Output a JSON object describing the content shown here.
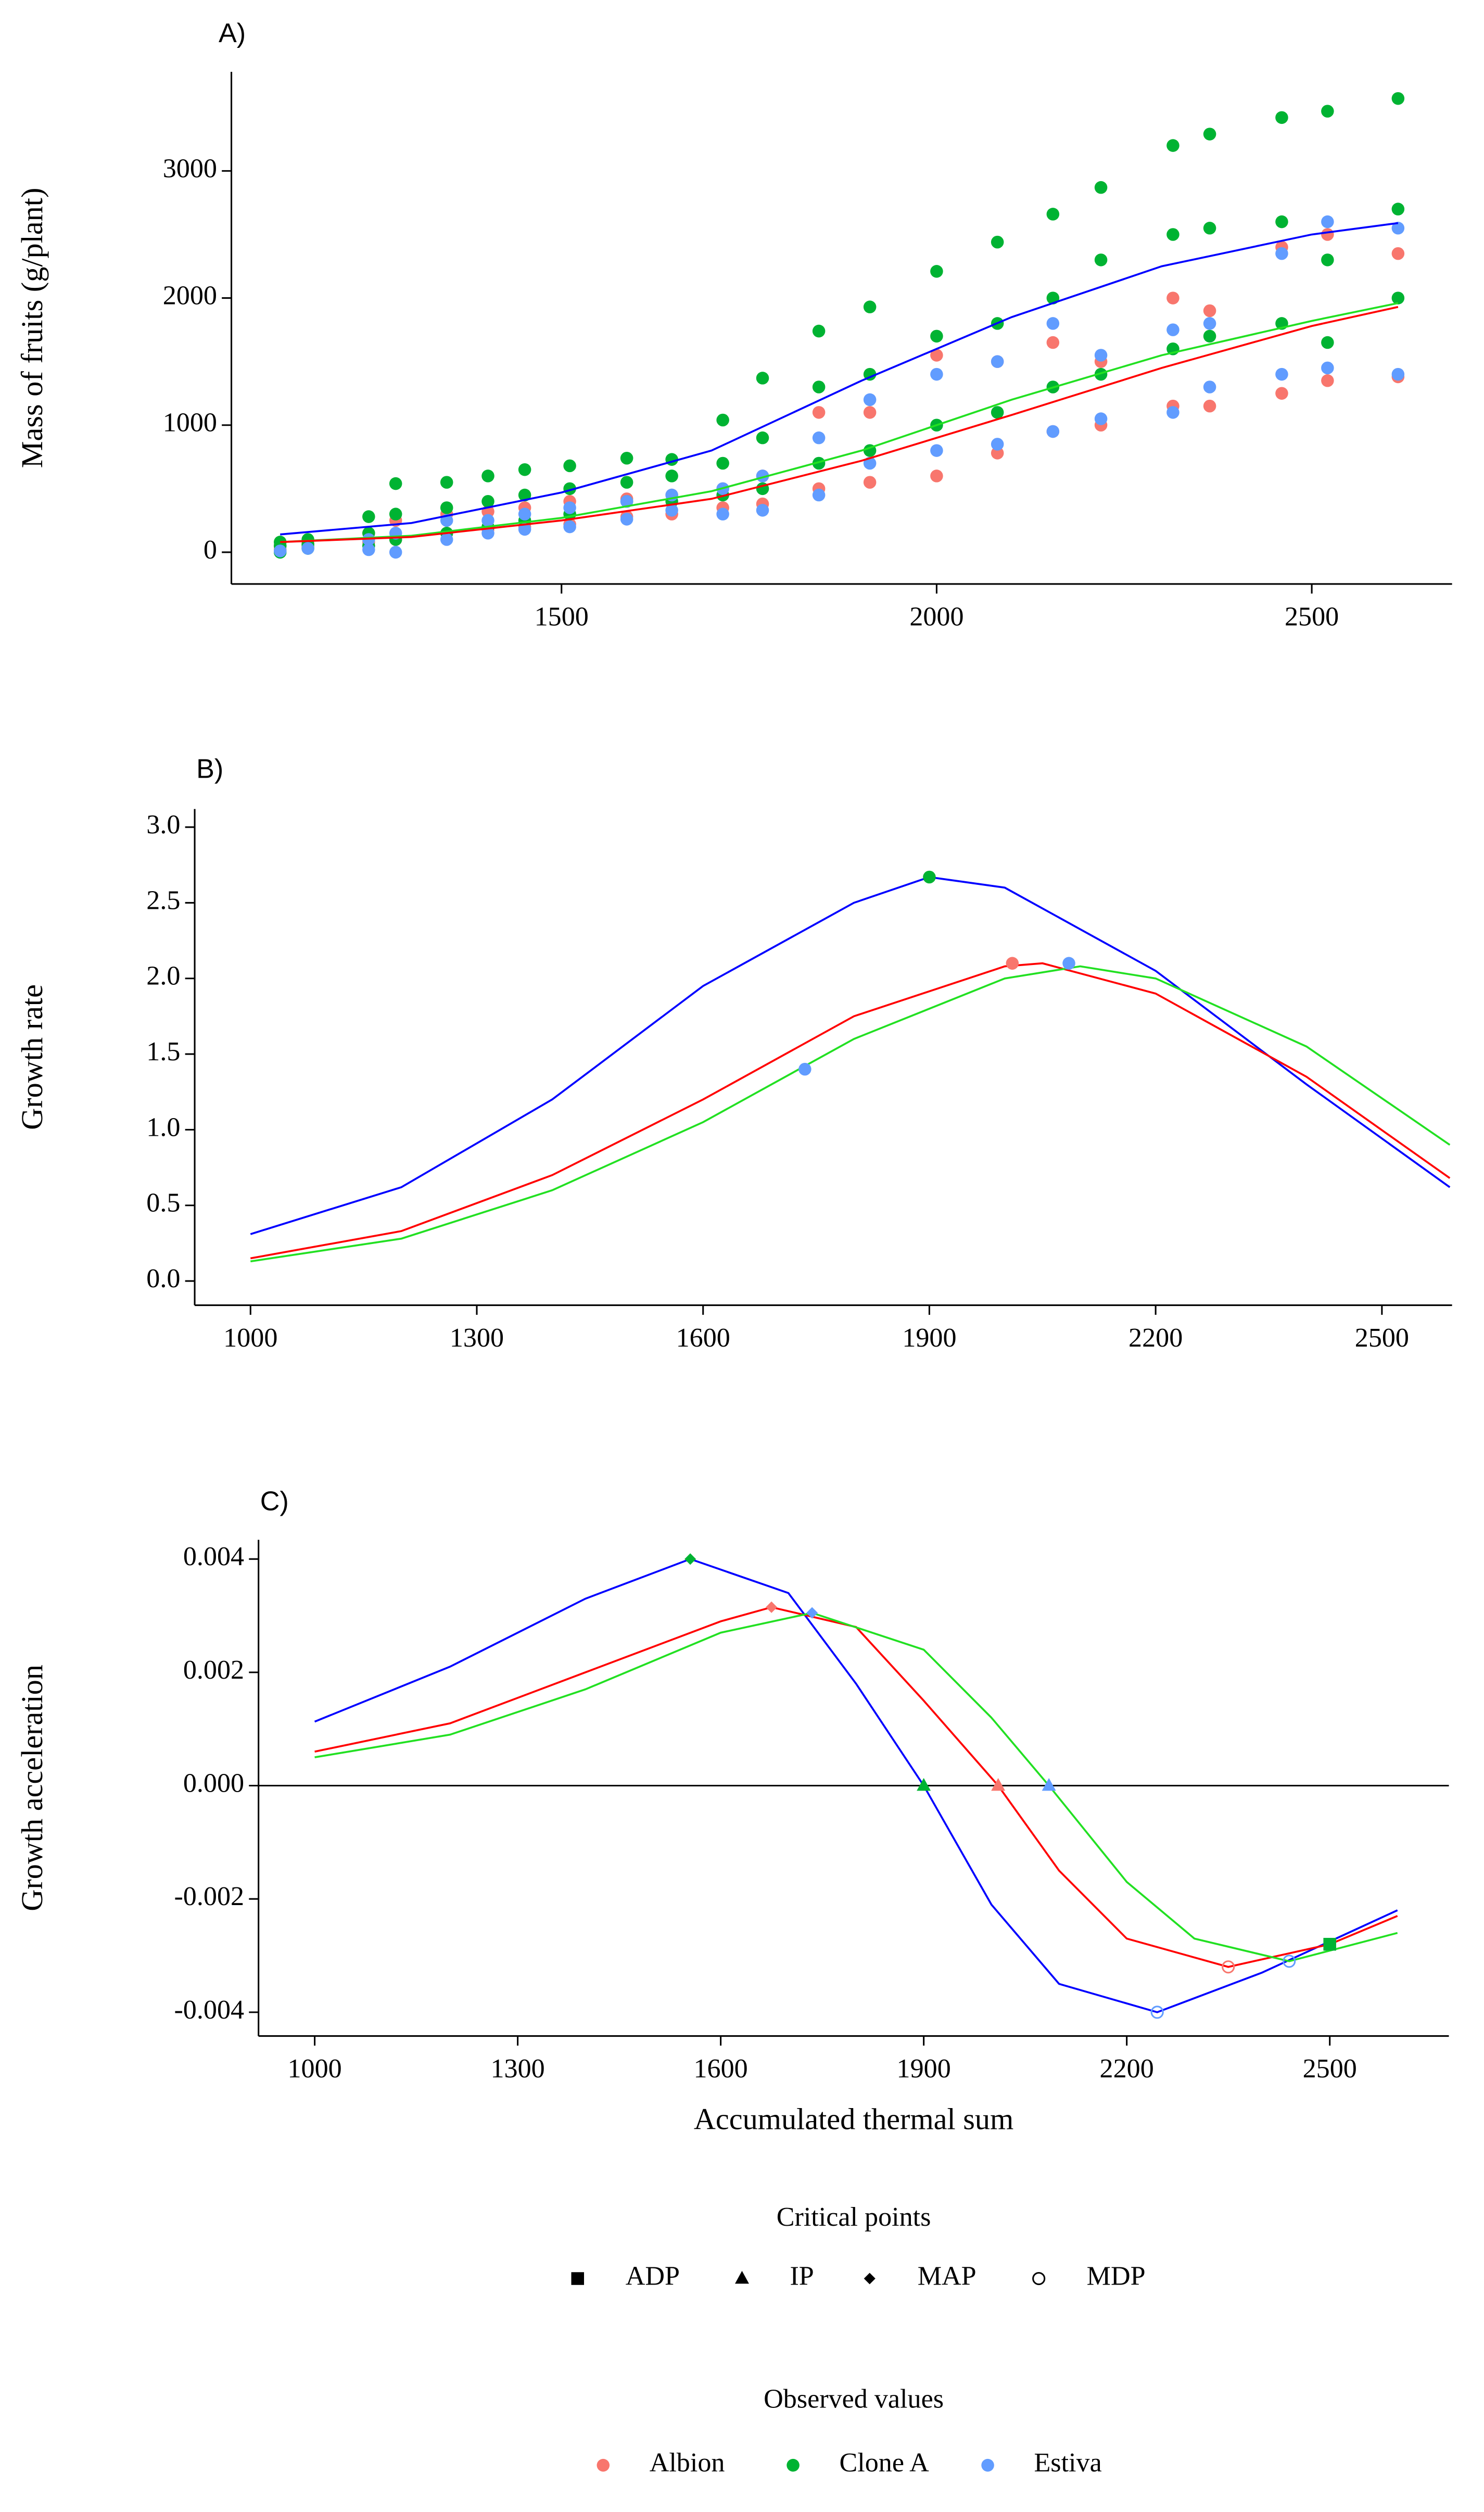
{
  "chart_data": [
    {
      "type": "scatter",
      "panel_label": "A)",
      "ylabel": "Mass of fruits (g/plant)",
      "xlim": [
        1060,
        2687
      ],
      "ylim": [
        -250,
        3780
      ],
      "xticks": [
        1500,
        2000,
        2500
      ],
      "yticks": [
        0,
        1000,
        2000,
        3000
      ],
      "series": [
        {
          "name": "Albion",
          "color": "#F8766D",
          "x": [
            1125,
            1125,
            1162,
            1162,
            1243,
            1243,
            1279,
            1279,
            1347,
            1347,
            1402,
            1402,
            1451,
            1451,
            1511,
            1511,
            1587,
            1587,
            1647,
            1647,
            1715,
            1715,
            1768,
            1768,
            1843,
            1843,
            1911,
            1911,
            2000,
            2000,
            2081,
            2081,
            2155,
            2155,
            2219,
            2219,
            2315,
            2315,
            2364,
            2364,
            2460,
            2460,
            2521,
            2521,
            2615,
            2615
          ],
          "values": [
            20,
            50,
            40,
            70,
            80,
            150,
            100,
            250,
            150,
            300,
            180,
            320,
            200,
            350,
            220,
            400,
            280,
            420,
            300,
            450,
            350,
            500,
            380,
            600,
            500,
            1100,
            550,
            1100,
            600,
            1550,
            780,
            1500,
            950,
            1650,
            1000,
            1500,
            1150,
            2000,
            1150,
            1900,
            1250,
            2400,
            1350,
            2500,
            1380,
            2350
          ]
        },
        {
          "name": "Clone A",
          "color": "#00B332",
          "x": [
            1125,
            1125,
            1125,
            1162,
            1162,
            1162,
            1243,
            1243,
            1243,
            1279,
            1279,
            1279,
            1347,
            1347,
            1347,
            1402,
            1402,
            1402,
            1451,
            1451,
            1451,
            1511,
            1511,
            1511,
            1587,
            1587,
            1587,
            1647,
            1647,
            1647,
            1715,
            1715,
            1715,
            1768,
            1768,
            1768,
            1843,
            1843,
            1843,
            1911,
            1911,
            1911,
            2000,
            2000,
            2000,
            2081,
            2081,
            2081,
            2155,
            2155,
            2155,
            2219,
            2219,
            2219,
            2315,
            2315,
            2315,
            2364,
            2364,
            2364,
            2460,
            2460,
            2460,
            2521,
            2521,
            2521,
            2615,
            2615,
            2615
          ],
          "values": [
            0,
            50,
            80,
            30,
            60,
            100,
            50,
            150,
            280,
            100,
            300,
            540,
            150,
            350,
            550,
            200,
            400,
            600,
            250,
            450,
            650,
            300,
            500,
            680,
            400,
            550,
            740,
            400,
            600,
            730,
            450,
            700,
            1040,
            500,
            900,
            1370,
            700,
            1300,
            1740,
            800,
            1400,
            1930,
            1000,
            1700,
            2210,
            1100,
            1800,
            2440,
            1300,
            2000,
            2660,
            1400,
            2300,
            2870,
            1600,
            2500,
            3200,
            1700,
            2550,
            3290,
            1800,
            2600,
            3420,
            1650,
            2300,
            3470,
            2000,
            2700,
            3570
          ]
        },
        {
          "name": "Estiva",
          "color": "#619CFF",
          "x": [
            1125,
            1162,
            1243,
            1243,
            1279,
            1279,
            1347,
            1347,
            1402,
            1402,
            1451,
            1451,
            1511,
            1511,
            1587,
            1587,
            1647,
            1647,
            1715,
            1715,
            1768,
            1768,
            1843,
            1843,
            1911,
            1911,
            2000,
            2000,
            2081,
            2081,
            2155,
            2155,
            2219,
            2219,
            2315,
            2315,
            2364,
            2364,
            2460,
            2460,
            2521,
            2521,
            2615,
            2615
          ],
          "values": [
            10,
            30,
            20,
            100,
            0,
            150,
            100,
            250,
            150,
            250,
            180,
            300,
            200,
            350,
            260,
            400,
            330,
            450,
            300,
            500,
            330,
            600,
            450,
            900,
            700,
            1200,
            800,
            1400,
            850,
            1500,
            950,
            1800,
            1050,
            1550,
            1100,
            1750,
            1300,
            1800,
            1400,
            2350,
            1450,
            2600,
            1400,
            2550
          ]
        }
      ],
      "lines": [
        {
          "color": "#0000FF",
          "x": [
            1125,
            1300,
            1500,
            1700,
            1900,
            2100,
            2300,
            2500,
            2615
          ],
          "values": [
            140,
            230,
            470,
            800,
            1350,
            1850,
            2250,
            2500,
            2590
          ]
        },
        {
          "color": "#22E022",
          "x": [
            1125,
            1300,
            1500,
            1700,
            1900,
            2100,
            2300,
            2500,
            2615
          ],
          "values": [
            80,
            130,
            270,
            480,
            800,
            1200,
            1550,
            1820,
            1960
          ]
        },
        {
          "color": "#FF0000",
          "x": [
            1125,
            1300,
            1500,
            1700,
            1900,
            2100,
            2300,
            2500,
            2615
          ],
          "values": [
            80,
            120,
            250,
            420,
            720,
            1080,
            1450,
            1780,
            1930
          ]
        }
      ]
    },
    {
      "type": "line",
      "panel_label": "B)",
      "ylabel": "Growth rate",
      "xlim": [
        926,
        2593
      ],
      "ylim": [
        -0.16,
        3.12
      ],
      "xticks": [
        1000,
        1300,
        1600,
        1900,
        2200,
        2500
      ],
      "yticks": [
        {
          "value": 0,
          "label": "0.0"
        },
        0.5,
        {
          "value": 1,
          "label": "1.0"
        },
        1.5,
        {
          "value": 2,
          "label": "2.0"
        },
        2.5,
        {
          "value": 3,
          "label": "3.0"
        }
      ],
      "lines": [
        {
          "color": "#0000FF",
          "x": [
            1000,
            1200,
            1400,
            1600,
            1800,
            1900,
            2000,
            2200,
            2400,
            2590
          ],
          "values": [
            0.31,
            0.62,
            1.2,
            1.95,
            2.5,
            2.67,
            2.6,
            2.05,
            1.3,
            0.62
          ]
        },
        {
          "color": "#FF0000",
          "x": [
            1000,
            1200,
            1400,
            1600,
            1800,
            2000,
            2050,
            2200,
            2400,
            2590
          ],
          "values": [
            0.15,
            0.33,
            0.7,
            1.2,
            1.75,
            2.08,
            2.1,
            1.9,
            1.35,
            0.68
          ]
        },
        {
          "color": "#22E022",
          "x": [
            1000,
            1200,
            1400,
            1600,
            1800,
            2000,
            2100,
            2200,
            2400,
            2590
          ],
          "values": [
            0.13,
            0.28,
            0.6,
            1.05,
            1.6,
            2.0,
            2.08,
            2.0,
            1.55,
            0.9
          ]
        }
      ],
      "points": [
        {
          "x": 1900,
          "y": 2.67,
          "color": "#00B332",
          "shape": "circle"
        },
        {
          "x": 2010,
          "y": 2.1,
          "color": "#F8766D",
          "shape": "circle"
        },
        {
          "x": 2085,
          "y": 2.1,
          "color": "#619CFF",
          "shape": "circle"
        },
        {
          "x": 1735,
          "y": 1.4,
          "color": "#619CFF",
          "shape": "circle"
        }
      ]
    },
    {
      "type": "line",
      "panel_label": "C)",
      "ylabel": "Growth acceleration",
      "xlabel": "Accumulated thermal sum",
      "xlim": [
        917,
        2676
      ],
      "ylim": [
        -0.00442,
        0.00434
      ],
      "xticks": [
        1000,
        1300,
        1600,
        1900,
        2200,
        2500
      ],
      "yticks": [
        -0.004,
        -0.002,
        {
          "value": 0,
          "label": "0.000"
        },
        0.002,
        0.004
      ],
      "hline": 0,
      "lines": [
        {
          "color": "#0000FF",
          "x": [
            1000,
            1200,
            1400,
            1555,
            1700,
            1800,
            1900,
            2000,
            2100,
            2245,
            2400,
            2600
          ],
          "values": [
            0.00113,
            0.0021,
            0.0033,
            0.004,
            0.0034,
            0.0018,
            0,
            -0.0021,
            -0.0035,
            -0.004,
            -0.0033,
            -0.0022
          ]
        },
        {
          "color": "#FF0000",
          "x": [
            1000,
            1200,
            1400,
            1600,
            1675,
            1800,
            1900,
            2010,
            2100,
            2200,
            2350,
            2500,
            2600
          ],
          "values": [
            0.0006,
            0.0011,
            0.002,
            0.0029,
            0.00315,
            0.0028,
            0.0015,
            0,
            -0.0015,
            -0.0027,
            -0.0032,
            -0.0028,
            -0.0023
          ]
        },
        {
          "color": "#22E022",
          "x": [
            1000,
            1200,
            1400,
            1600,
            1735,
            1900,
            2000,
            2085,
            2200,
            2300,
            2440,
            2600
          ],
          "values": [
            0.0005,
            0.0009,
            0.0017,
            0.0027,
            0.00305,
            0.0024,
            0.0012,
            0,
            -0.0017,
            -0.0027,
            -0.0031,
            -0.0026
          ]
        }
      ],
      "points": [
        {
          "x": 1555,
          "y": 0.004,
          "color": "#00B332",
          "shape": "diamond"
        },
        {
          "x": 1675,
          "y": 0.00315,
          "color": "#F8766D",
          "shape": "diamond"
        },
        {
          "x": 1735,
          "y": 0.00305,
          "color": "#619CFF",
          "shape": "diamond"
        },
        {
          "x": 1900,
          "y": 0,
          "color": "#00B332",
          "shape": "triangle"
        },
        {
          "x": 2010,
          "y": 0,
          "color": "#F8766D",
          "shape": "triangle"
        },
        {
          "x": 2085,
          "y": 0,
          "color": "#619CFF",
          "shape": "triangle"
        },
        {
          "x": 2245,
          "y": -0.004,
          "color": "#619CFF",
          "shape": "open-circle"
        },
        {
          "x": 2350,
          "y": -0.0032,
          "color": "#F8766D",
          "shape": "open-circle"
        },
        {
          "x": 2440,
          "y": -0.0031,
          "color": "#619CFF",
          "shape": "open-circle"
        },
        {
          "x": 2500,
          "y": -0.0028,
          "color": "#00B332",
          "shape": "square"
        }
      ]
    }
  ],
  "critical_points_legend": {
    "title": "Critical points",
    "items": [
      {
        "label": "ADP",
        "shape": "square"
      },
      {
        "label": "IP",
        "shape": "triangle"
      },
      {
        "label": "MAP",
        "shape": "diamond"
      },
      {
        "label": "MDP",
        "shape": "open-circle"
      }
    ]
  },
  "observed_legend": {
    "title": "Observed values"
  }
}
